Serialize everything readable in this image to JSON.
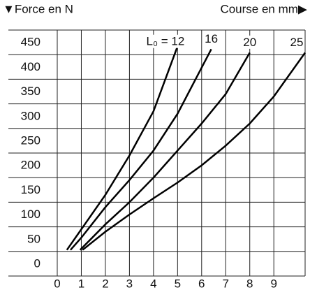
{
  "chart_data": {
    "type": "line",
    "y_label": "▼Force en N",
    "x_label": "Course en mm▶",
    "xlim": [
      0,
      10.3
    ],
    "xticks": [
      0,
      1,
      2,
      3,
      4,
      5,
      6,
      7,
      8,
      9
    ],
    "ylim": [
      0,
      500
    ],
    "yticks": [
      0,
      50,
      100,
      150,
      200,
      250,
      300,
      350,
      400,
      450
    ],
    "grid": true,
    "annotations": [
      "L₀ = 12",
      "16",
      "20",
      "25"
    ],
    "series": [
      {
        "name": "12",
        "color": "#000000",
        "x": [
          0.4,
          1,
          2,
          3,
          4,
          5
        ],
        "values": [
          53,
          95,
          165,
          245,
          335,
          467
        ]
      },
      {
        "name": "16",
        "color": "#000000",
        "x": [
          0.55,
          1,
          2,
          3,
          4,
          5,
          6.4
        ],
        "values": [
          53,
          78,
          140,
          195,
          255,
          330,
          461
        ]
      },
      {
        "name": "20",
        "color": "#000000",
        "x": [
          0.95,
          2,
          3,
          4,
          5,
          6,
          7,
          8
        ],
        "values": [
          53,
          105,
          150,
          200,
          255,
          310,
          370,
          454
        ]
      },
      {
        "name": "25",
        "color": "#000000",
        "x": [
          1.05,
          2,
          3,
          4,
          5,
          6,
          7,
          8,
          9,
          10.3
        ],
        "values": [
          53,
          90,
          125,
          158,
          190,
          225,
          265,
          310,
          365,
          454
        ]
      }
    ]
  }
}
